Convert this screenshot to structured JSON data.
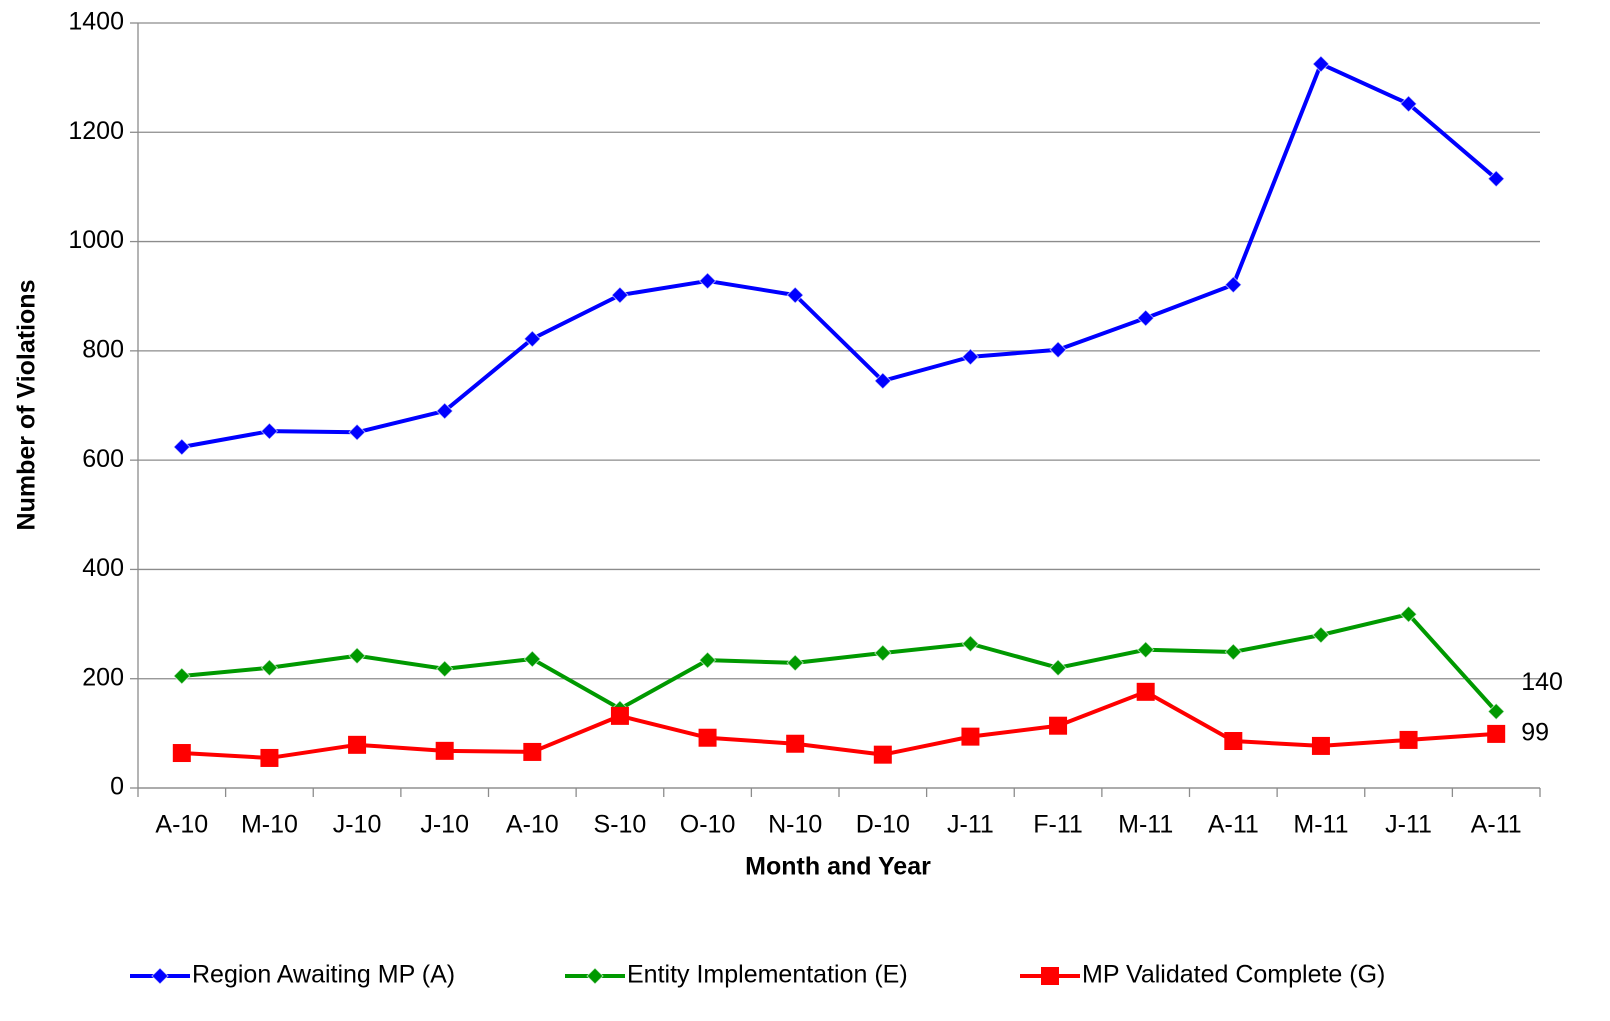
{
  "chart_data": {
    "type": "line",
    "x_label": "Month and Year",
    "y_label": "Number of Violations",
    "categories": [
      "A-10",
      "M-10",
      "J-10",
      "J-10",
      "A-10",
      "S-10",
      "O-10",
      "N-10",
      "D-10",
      "J-11",
      "F-11",
      "M-11",
      "A-11",
      "M-11",
      "J-11",
      "A-11"
    ],
    "series": [
      {
        "name": "Region Awaiting MP (A)",
        "color": "#0000ff",
        "marker": "diamond",
        "values": [
          624,
          653,
          651,
          690,
          822,
          902,
          928,
          902,
          745,
          789,
          802,
          860,
          921,
          1325,
          1252,
          1115
        ]
      },
      {
        "name": "Entity Implementation (E)",
        "color": "#009900",
        "marker": "diamond",
        "values": [
          205,
          220,
          242,
          218,
          236,
          145,
          234,
          229,
          247,
          264,
          220,
          253,
          249,
          280,
          318,
          140
        ]
      },
      {
        "name": "MP Validated Complete (G)",
        "color": "#ff0000",
        "marker": "square",
        "values": [
          64,
          55,
          79,
          68,
          66,
          132,
          92,
          81,
          61,
          94,
          114,
          176,
          86,
          77,
          88,
          99
        ]
      }
    ],
    "data_labels": [
      {
        "series": 1,
        "index": 15
      },
      {
        "series": 2,
        "index": 15
      }
    ],
    "ylim": [
      0,
      1400
    ],
    "yticks": [
      0,
      200,
      400,
      600,
      800,
      1000,
      1200,
      1400
    ],
    "grid": true,
    "legend": "bottom"
  }
}
